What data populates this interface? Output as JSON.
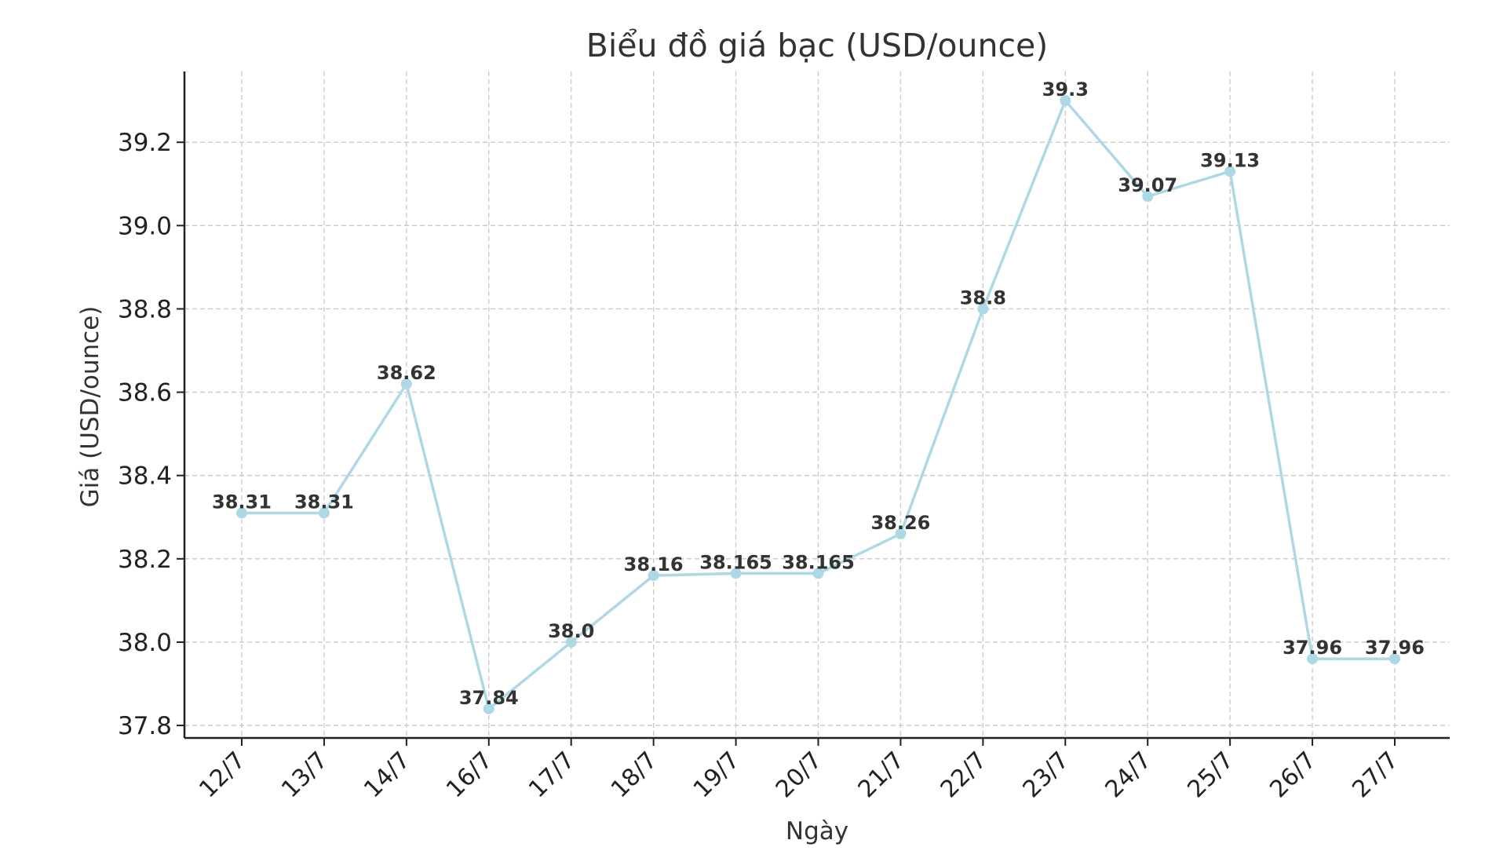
{
  "chart_data": {
    "type": "line",
    "title": "Biểu đồ giá bạc (USD/ounce)",
    "xlabel": "Ngày",
    "ylabel": "Giá (USD/ounce)",
    "categories": [
      "12/7",
      "13/7",
      "14/7",
      "16/7",
      "17/7",
      "18/7",
      "19/7",
      "20/7",
      "21/7",
      "22/7",
      "23/7",
      "24/7",
      "25/7",
      "26/7",
      "27/7"
    ],
    "series": [
      {
        "values": [
          38.31,
          38.31,
          38.62,
          37.84,
          38.0,
          38.16,
          38.165,
          38.165,
          38.26,
          38.8,
          39.3,
          39.07,
          39.13,
          37.96,
          37.96
        ]
      }
    ],
    "data_labels": [
      "38.31",
      "38.31",
      "38.62",
      "37.84",
      "38.0",
      "38.16",
      "38.165",
      "38.165",
      "38.26",
      "38.8",
      "39.3",
      "39.07",
      "39.13",
      "37.96",
      "37.96"
    ],
    "yticks": [
      "37.8",
      "38.0",
      "38.2",
      "38.4",
      "38.6",
      "38.8",
      "39.0",
      "39.2"
    ],
    "ylim": [
      37.77,
      39.37
    ],
    "grid": true,
    "line_color": "#add8e6",
    "text_color": "#333333"
  }
}
